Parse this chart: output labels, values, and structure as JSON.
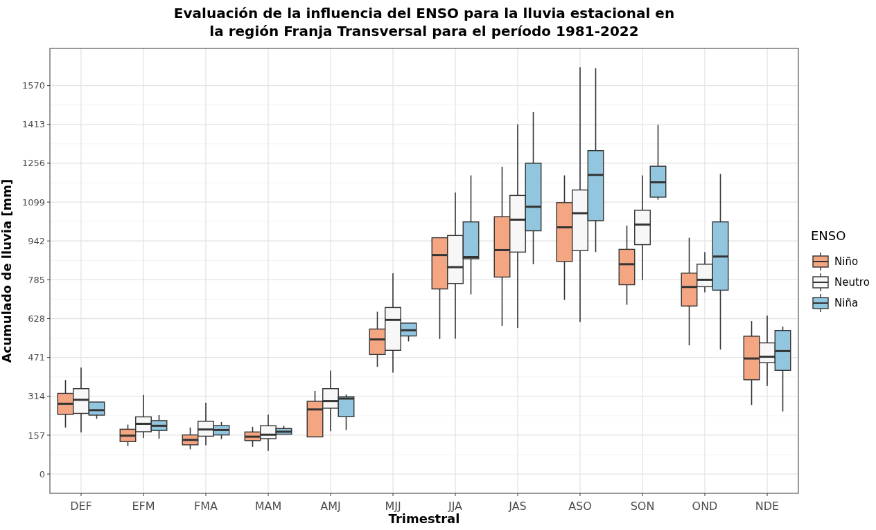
{
  "chart_data": {
    "type": "box",
    "title": "Evaluación de la influencia del ENSO para la lluvia estacional en\nla región Franja Transversal para el período 1981-2022",
    "xlabel": "Trimestral",
    "ylabel": "Acumulado de lluvia [mm]",
    "legend_title": "ENSO",
    "legend": "right",
    "grid": true,
    "categories": [
      "DEF",
      "EFM",
      "FMA",
      "MAM",
      "AMJ",
      "MJJ",
      "JJA",
      "JAS",
      "ASO",
      "SON",
      "OND",
      "NDE"
    ],
    "ylim": [
      -78,
      1720
    ],
    "yticks": [
      0,
      157,
      314,
      471,
      628,
      785,
      942,
      1099,
      1256,
      1413,
      1570
    ],
    "series": [
      {
        "name": "Niño",
        "color": "#f4a582",
        "boxes": [
          {
            "low": 188,
            "q1": 241,
            "median": 284,
            "q3": 326,
            "high": 380
          },
          {
            "low": 113,
            "q1": 131,
            "median": 155,
            "q3": 181,
            "high": 200
          },
          {
            "low": 100,
            "q1": 118,
            "median": 138,
            "q3": 158,
            "high": 188
          },
          {
            "low": 110,
            "q1": 135,
            "median": 151,
            "q3": 170,
            "high": 191
          },
          {
            "low": 146,
            "q1": 150,
            "median": 261,
            "q3": 294,
            "high": 336
          },
          {
            "low": 433,
            "q1": 483,
            "median": 544,
            "q3": 586,
            "high": 656
          },
          {
            "low": 546,
            "q1": 748,
            "median": 885,
            "q3": 955,
            "high": 960
          },
          {
            "low": 599,
            "q1": 796,
            "median": 905,
            "q3": 1040,
            "high": 1242
          },
          {
            "low": 704,
            "q1": 859,
            "median": 997,
            "q3": 1097,
            "high": 1207
          },
          {
            "low": 684,
            "q1": 765,
            "median": 848,
            "q3": 908,
            "high": 1004
          },
          {
            "low": 520,
            "q1": 679,
            "median": 756,
            "q3": 812,
            "high": 955
          },
          {
            "low": 279,
            "q1": 381,
            "median": 467,
            "q3": 557,
            "high": 618
          }
        ]
      },
      {
        "name": "Neutro",
        "color": "#f7f7f7",
        "boxes": [
          {
            "low": 168,
            "q1": 245,
            "median": 300,
            "q3": 345,
            "high": 430
          },
          {
            "low": 146,
            "q1": 171,
            "median": 203,
            "q3": 231,
            "high": 320
          },
          {
            "low": 116,
            "q1": 153,
            "median": 180,
            "q3": 213,
            "high": 288
          },
          {
            "low": 93,
            "q1": 143,
            "median": 159,
            "q3": 195,
            "high": 240
          },
          {
            "low": 173,
            "q1": 266,
            "median": 295,
            "q3": 345,
            "high": 418
          },
          {
            "low": 410,
            "q1": 500,
            "median": 623,
            "q3": 673,
            "high": 811
          },
          {
            "low": 547,
            "q1": 770,
            "median": 836,
            "q3": 964,
            "high": 1138
          },
          {
            "low": 590,
            "q1": 897,
            "median": 1028,
            "q3": 1126,
            "high": 1413
          },
          {
            "low": 615,
            "q1": 903,
            "median": 1054,
            "q3": 1148,
            "high": 1644
          },
          {
            "low": 784,
            "q1": 927,
            "median": 1008,
            "q3": 1066,
            "high": 1207
          },
          {
            "low": 734,
            "q1": 757,
            "median": 785,
            "q3": 848,
            "high": 897
          },
          {
            "low": 356,
            "q1": 450,
            "median": 474,
            "q3": 530,
            "high": 640
          }
        ]
      },
      {
        "name": "Niña",
        "color": "#92c5de",
        "boxes": [
          {
            "low": 223,
            "q1": 238,
            "median": 258,
            "q3": 291,
            "high": 295
          },
          {
            "low": 143,
            "q1": 176,
            "median": 195,
            "q3": 216,
            "high": 238
          },
          {
            "low": 141,
            "q1": 158,
            "median": 178,
            "q3": 196,
            "high": 210
          },
          {
            "low": 155,
            "q1": 161,
            "median": 171,
            "q3": 184,
            "high": 195
          },
          {
            "low": 178,
            "q1": 232,
            "median": 305,
            "q3": 312,
            "high": 321
          },
          {
            "low": 536,
            "q1": 558,
            "median": 581,
            "q3": 610,
            "high": 614
          },
          {
            "low": 726,
            "q1": 870,
            "median": 877,
            "q3": 1019,
            "high": 1207
          },
          {
            "low": 848,
            "q1": 983,
            "median": 1080,
            "q3": 1256,
            "high": 1463
          },
          {
            "low": 897,
            "q1": 1024,
            "median": 1209,
            "q3": 1307,
            "high": 1640
          },
          {
            "low": 1109,
            "q1": 1119,
            "median": 1179,
            "q3": 1244,
            "high": 1411
          },
          {
            "low": 503,
            "q1": 743,
            "median": 879,
            "q3": 1019,
            "high": 1213
          },
          {
            "low": 253,
            "q1": 419,
            "median": 497,
            "q3": 580,
            "high": 596
          }
        ]
      }
    ]
  }
}
